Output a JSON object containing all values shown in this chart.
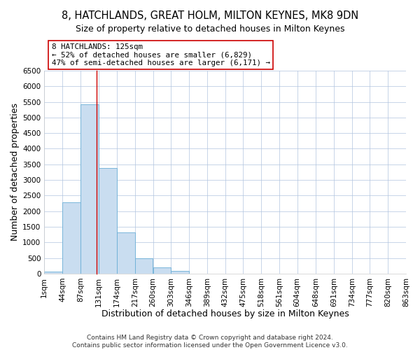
{
  "title": "8, HATCHLANDS, GREAT HOLM, MILTON KEYNES, MK8 9DN",
  "subtitle": "Size of property relative to detached houses in Milton Keynes",
  "xlabel": "Distribution of detached houses by size in Milton Keynes",
  "ylabel": "Number of detached properties",
  "bin_edges": [
    1,
    44,
    87,
    131,
    174,
    217,
    260,
    303,
    346,
    389,
    432,
    475,
    518,
    561,
    604,
    648,
    691,
    734,
    777,
    820,
    863
  ],
  "bin_labels": [
    "1sqm",
    "44sqm",
    "87sqm",
    "131sqm",
    "174sqm",
    "217sqm",
    "260sqm",
    "303sqm",
    "346sqm",
    "389sqm",
    "432sqm",
    "475sqm",
    "518sqm",
    "561sqm",
    "604sqm",
    "648sqm",
    "691sqm",
    "734sqm",
    "777sqm",
    "820sqm",
    "863sqm"
  ],
  "counts": [
    75,
    2280,
    5430,
    3380,
    1310,
    480,
    190,
    95,
    0,
    0,
    0,
    0,
    0,
    0,
    0,
    0,
    0,
    0,
    0,
    0
  ],
  "bar_color": "#c9ddf0",
  "bar_edgecolor": "#6aaed6",
  "property_size": 125,
  "property_line_color": "#cc0000",
  "annotation_line1": "8 HATCHLANDS: 125sqm",
  "annotation_line2": "← 52% of detached houses are smaller (6,829)",
  "annotation_line3": "47% of semi-detached houses are larger (6,171) →",
  "annotation_box_edgecolor": "#cc0000",
  "ylim": [
    0,
    6500
  ],
  "yticks": [
    0,
    500,
    1000,
    1500,
    2000,
    2500,
    3000,
    3500,
    4000,
    4500,
    5000,
    5500,
    6000,
    6500
  ],
  "footer_line1": "Contains HM Land Registry data © Crown copyright and database right 2024.",
  "footer_line2": "Contains public sector information licensed under the Open Government Licence v3.0.",
  "bg_color": "#ffffff",
  "grid_color": "#b0c4de",
  "title_fontsize": 10.5,
  "subtitle_fontsize": 9,
  "axis_label_fontsize": 9,
  "tick_fontsize": 7.5,
  "footer_fontsize": 6.5
}
